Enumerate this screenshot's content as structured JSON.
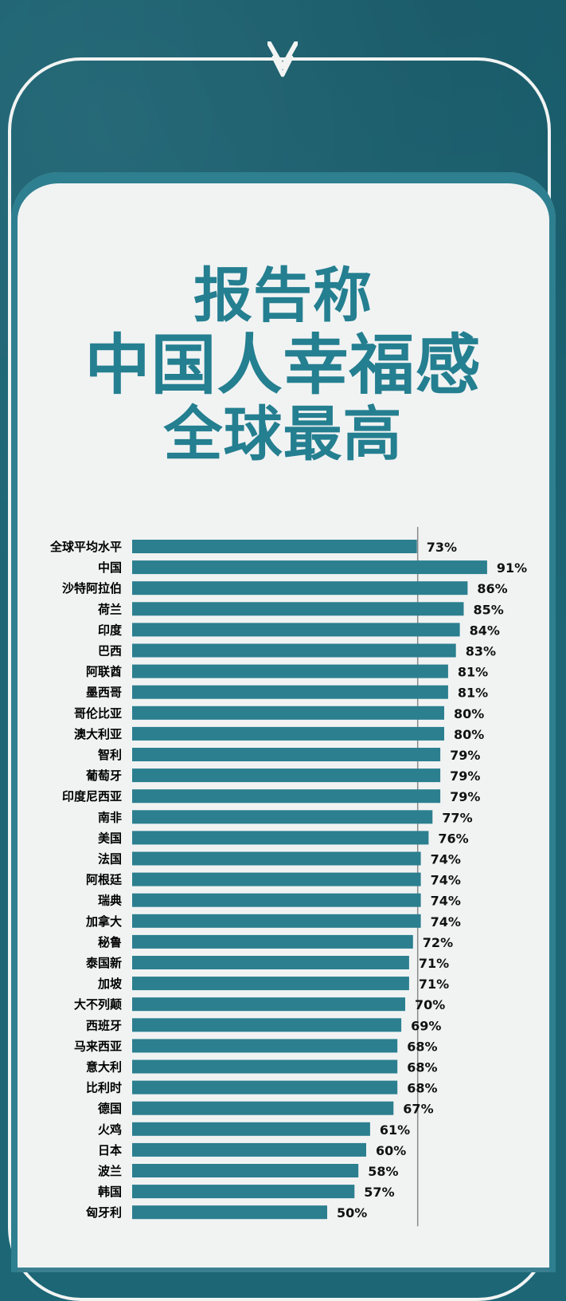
{
  "title_lines": [
    "报告称",
    "中国人幸福感",
    "全球最高"
  ],
  "colors": {
    "background": "#1c6676",
    "panel": "#f1f3f3",
    "title": "#247f90",
    "bar": "#2b7f8f"
  },
  "chart_data": {
    "type": "bar",
    "orientation": "horizontal",
    "categories": [
      "全球平均水平",
      "中国",
      "沙特阿拉伯",
      "荷兰",
      "印度",
      "巴西",
      "阿联酋",
      "墨西哥",
      "哥伦比亚",
      "澳大利亚",
      "智利",
      "葡萄牙",
      "印度尼西亚",
      "南非",
      "美国",
      "法国",
      "阿根廷",
      "瑞典",
      "加拿大",
      "秘鲁",
      "泰国新",
      "加坡",
      "大不列颠",
      "西班牙",
      "马来西亚",
      "意大利",
      "比利时",
      "德国",
      "火鸡",
      "日本",
      "波兰",
      "韩国",
      "匈牙利"
    ],
    "values": [
      73,
      91,
      86,
      85,
      84,
      83,
      81,
      81,
      80,
      80,
      79,
      79,
      79,
      77,
      76,
      74,
      74,
      74,
      74,
      72,
      71,
      71,
      70,
      69,
      68,
      68,
      68,
      67,
      61,
      60,
      58,
      57,
      50
    ],
    "value_labels": [
      "73%",
      "91%",
      "86%",
      "85%",
      "84%",
      "83%",
      "81%",
      "81%",
      "80%",
      "80%",
      "79%",
      "79%",
      "79%",
      "77%",
      "76%",
      "74%",
      "74%",
      "74%",
      "74%",
      "72%",
      "71%",
      "71%",
      "70%",
      "69%",
      "68%",
      "68%",
      "68%",
      "67%",
      "61%",
      "60%",
      "58%",
      "57%",
      "50%"
    ],
    "reference_value": 73,
    "xlim": [
      0,
      100
    ]
  }
}
